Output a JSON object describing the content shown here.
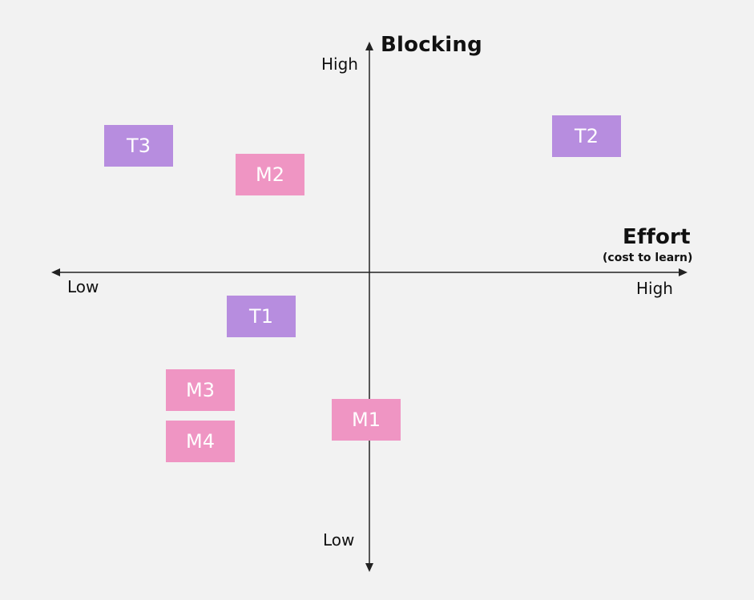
{
  "diagram": {
    "axes": {
      "vertical": {
        "title": "Blocking",
        "high_label": "High",
        "low_label": "Low"
      },
      "horizontal": {
        "title": "Effort",
        "subtitle": "(cost to learn)",
        "low_label": "Low",
        "high_label": "High"
      }
    },
    "items": [
      {
        "id": "T3",
        "label": "T3",
        "color": "#b78ddf"
      },
      {
        "id": "M2",
        "label": "M2",
        "color": "#ef95c3"
      },
      {
        "id": "T2",
        "label": "T2",
        "color": "#b78ddf"
      },
      {
        "id": "T1",
        "label": "T1",
        "color": "#b78ddf"
      },
      {
        "id": "M3",
        "label": "M3",
        "color": "#ef95c3"
      },
      {
        "id": "M1",
        "label": "M1",
        "color": "#ef95c3"
      },
      {
        "id": "M4",
        "label": "M4",
        "color": "#ef95c3"
      }
    ]
  }
}
